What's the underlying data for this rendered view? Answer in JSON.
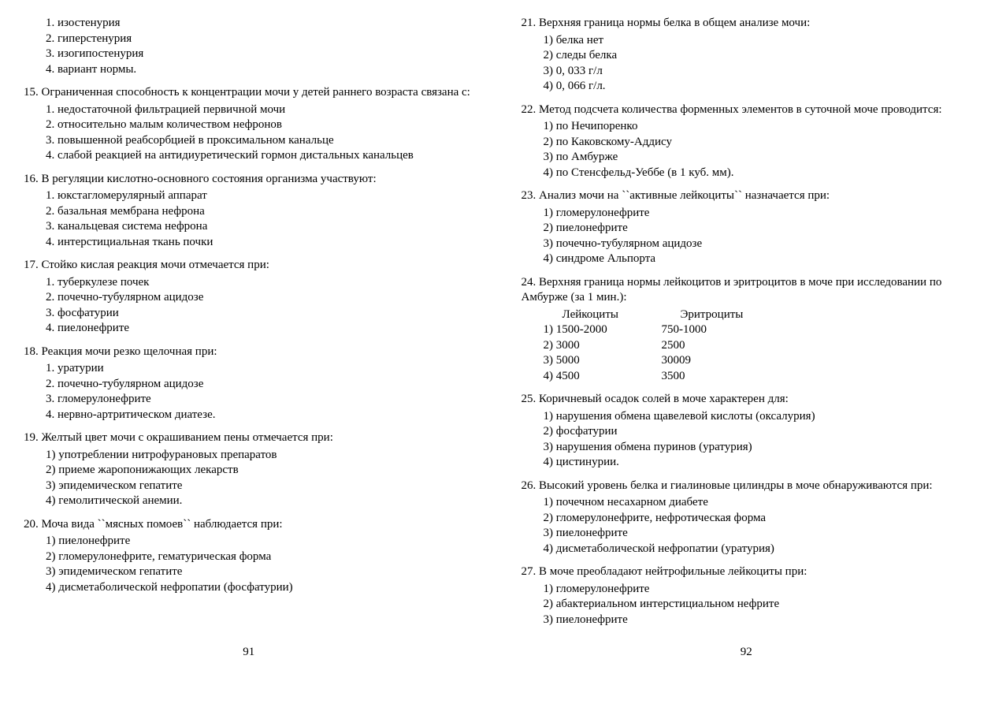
{
  "left": {
    "page_number": "91",
    "pre_answers": [
      "изостенурия",
      "гиперстенурия",
      "изогипостенурия",
      "вариант нормы."
    ],
    "questions": [
      {
        "num": "15.",
        "text": "Ограниченная способность к концентрации мочи у детей раннего возраста связана с:",
        "justified": true,
        "markers": [
          "1.",
          "2.",
          "3.",
          "4."
        ],
        "answers": [
          "недостаточной фильтрацией первичной мочи",
          "относительно малым количеством нефронов",
          "повышенной реабсорбцией в проксимальном канальце",
          "слабой реакцией на антидиуретический гормон дистальных канальцев"
        ]
      },
      {
        "num": "16.",
        "text": "В регуляции кислотно-основного состояния организма участвуют:",
        "markers": [
          "1.",
          "2.",
          "3.",
          "4."
        ],
        "answers": [
          "юкстагломерулярный аппарат",
          "базальная мембрана нефрона",
          "канальцевая система нефрона",
          "интерстициальная ткань почки"
        ]
      },
      {
        "num": "17.",
        "text": "Стойко кислая реакция мочи отмечается при:",
        "markers": [
          "1.",
          "2.",
          "3.",
          "4."
        ],
        "answers": [
          "туберкулезе почек",
          "почечно-тубулярном ацидозе",
          "фосфатурии",
          "пиелонефрите"
        ]
      },
      {
        "num": "18.",
        "text": "Реакция мочи резко щелочная при:",
        "markers": [
          "1.",
          "2.",
          "3.",
          "4."
        ],
        "answers": [
          "уратурии",
          "почечно-тубулярном ацидозе",
          "гломерулонефрите",
          "нервно-артритическом диатезе."
        ]
      },
      {
        "num": "19.",
        "text": "Желтый цвет мочи с окрашиванием пены отмечается при:",
        "markers": [
          "1)",
          "2)",
          "3)",
          "4)"
        ],
        "answers": [
          "употреблении нитрофурановых препаратов",
          "приеме жаропонижающих лекарств",
          "эпидемическом гепатите",
          "гемолитической анемии."
        ]
      },
      {
        "num": "20.",
        "text": "Моча вида ``мясных помоев`` наблюдается при:",
        "markers": [
          "1)",
          "2)",
          "3)",
          "4)"
        ],
        "answers": [
          "пиелонефрите",
          "гломерулонефрите, гематурическая форма",
          "эпидемическом гепатите",
          "дисметаболической нефропатии (фосфатурии)"
        ]
      }
    ]
  },
  "right": {
    "page_number": "92",
    "questions": [
      {
        "num": "21.",
        "text": "Верхняя граница нормы белка в общем анализе мочи:",
        "markers": [
          "1)",
          "2)",
          "3)",
          "4)"
        ],
        "answers": [
          "белка нет",
          "следы белка",
          "0, 033 г/л",
          "0, 066 г/л."
        ]
      },
      {
        "num": "22.",
        "text": "Метод подсчета количества форменных элементов в суточной моче проводится:",
        "markers": [
          "1)",
          "2)",
          "3)",
          "4)"
        ],
        "answers": [
          "по Нечипоренко",
          "по Каковскому-Аддису",
          "по Амбурже",
          "по Стенсфельд-Уеббе (в 1 куб. мм)."
        ]
      },
      {
        "num": "23.",
        "text": "Анализ мочи на ``активные лейкоциты`` назначается при:",
        "markers": [
          "1)",
          "2)",
          "3)",
          "4)"
        ],
        "answers": [
          "гломерулонефрите",
          "пиелонефрите",
          "почечно-тубулярном ацидозе",
          "синдроме Альпорта"
        ]
      },
      {
        "num": "24.",
        "text": "Верхняя граница нормы лейкоцитов и эритроцитов в моче при исследовании по Амбурже (за 1 мин.):",
        "type": "table",
        "header": {
          "a": "Лейкоциты",
          "b": "Эритроциты"
        },
        "rows": [
          {
            "marker": "1)",
            "a": "1500-2000",
            "b": "750-1000"
          },
          {
            "marker": "2)",
            "a": "3000",
            "b": "2500"
          },
          {
            "marker": "3)",
            "a": "5000",
            "b": "30009"
          },
          {
            "marker": "4)",
            "a": "4500",
            "b": "3500"
          }
        ]
      },
      {
        "num": "25.",
        "text": "Коричневый осадок солей в моче характерен для:",
        "markers": [
          "1)",
          "2)",
          "3)",
          "4)"
        ],
        "answers": [
          "нарушения обмена щавелевой кислоты (оксалурия)",
          "фосфатурии",
          "нарушения обмена пуринов (уратурия)",
          "цистинурии."
        ]
      },
      {
        "num": "26.",
        "text": "Высокий уровень белка и гиалиновые цилиндры в моче обнаруживаются при:",
        "markers": [
          "1)",
          "2)",
          "3)",
          "4)"
        ],
        "answers": [
          "почечном несахарном диабете",
          "гломерулонефрите, нефротическая форма",
          "пиелонефрите",
          "дисметаболической нефропатии (уратурия)"
        ]
      },
      {
        "num": "27.",
        "text": "В моче преобладают нейтрофильные лейкоциты при:",
        "markers": [
          "1)",
          "2)",
          "3)"
        ],
        "answers": [
          "гломерулонефрите",
          "абактериальном интерстициальном нефрите",
          "пиелонефрите"
        ]
      }
    ]
  }
}
